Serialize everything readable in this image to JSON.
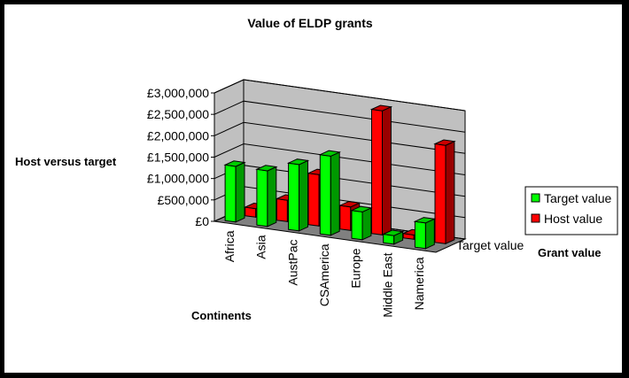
{
  "chart_data": {
    "type": "bar",
    "title": "Value of ELDP grants",
    "xlabel": "Continents",
    "ylabel": "Host versus target",
    "zlabel": "Grant value",
    "depth_tick": "Target value",
    "categories": [
      "Africa",
      "Asia",
      "AustPac",
      "CSAmerica",
      "Europe",
      "Middle East",
      "Namerica"
    ],
    "y_ticks": [
      "£0",
      "£500,000",
      "£1,000,000",
      "£1,500,000",
      "£2,000,000",
      "£2,500,000",
      "£3,000,000"
    ],
    "ylim": [
      0,
      3000000
    ],
    "grid": true,
    "legend_position": "right",
    "series": [
      {
        "name": "Target value",
        "color": "#00ff00",
        "values": [
          1300000,
          1300000,
          1550000,
          1850000,
          650000,
          200000,
          600000
        ]
      },
      {
        "name": "Host value",
        "color": "#ff0000",
        "values": [
          200000,
          500000,
          1200000,
          550000,
          2900000,
          100000,
          2300000
        ]
      }
    ]
  }
}
